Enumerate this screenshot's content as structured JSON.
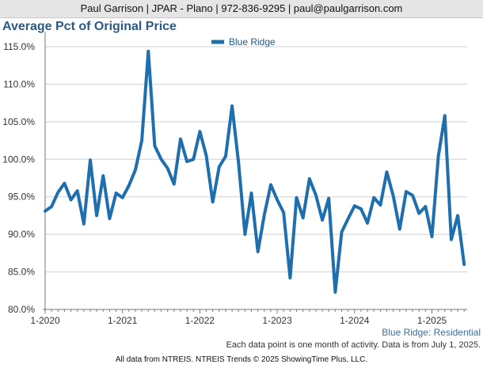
{
  "header": {
    "contact": "Paul Garrison | JPAR - Plano | 972-836-9295 | paul@paulgarrison.com"
  },
  "chart_data": {
    "type": "line",
    "title": "Average Pct of Original Price",
    "xlabel": "",
    "ylabel": "",
    "ylim": [
      80,
      117
    ],
    "yticks": [
      80,
      85,
      90,
      95,
      100,
      105,
      110,
      115
    ],
    "ytick_labels": [
      "80.0%",
      "85.0%",
      "90.0%",
      "95.0%",
      "100.0%",
      "105.0%",
      "110.0%",
      "115.0%"
    ],
    "xticks": [
      "1-2020",
      "1-2021",
      "1-2022",
      "1-2023",
      "1-2024",
      "1-2025"
    ],
    "grid": true,
    "legend_position": "top-center",
    "series": [
      {
        "name": "Blue Ridge",
        "color": "#1f6fae",
        "values": [
          93.1,
          93.7,
          95.6,
          96.8,
          94.6,
          95.8,
          91.4,
          99.9,
          92.5,
          97.8,
          92.1,
          95.5,
          94.9,
          96.5,
          98.6,
          102.5,
          114.4,
          101.8,
          100.0,
          98.8,
          96.7,
          102.7,
          99.7,
          100.0,
          103.7,
          100.5,
          94.3,
          99.0,
          100.4,
          107.1,
          99.5,
          90.0,
          95.5,
          87.7,
          92.6,
          96.6,
          94.6,
          92.9,
          84.2,
          94.9,
          92.2,
          97.4,
          95.2,
          91.9,
          94.8,
          82.3,
          90.3,
          92.1,
          93.8,
          93.4,
          91.5,
          94.9,
          93.9,
          98.3,
          95.1,
          90.7,
          95.7,
          95.2,
          92.8,
          93.7,
          89.7,
          100.4,
          105.8,
          89.3,
          92.5,
          86.0
        ]
      }
    ]
  },
  "region_label": "Blue Ridge: Residential",
  "footnote": "Each data point is one month of activity. Data is from July 1, 2025.",
  "source": "All data from NTREIS. NTREIS Trends © 2025 ShowingTime Plus, LLC."
}
